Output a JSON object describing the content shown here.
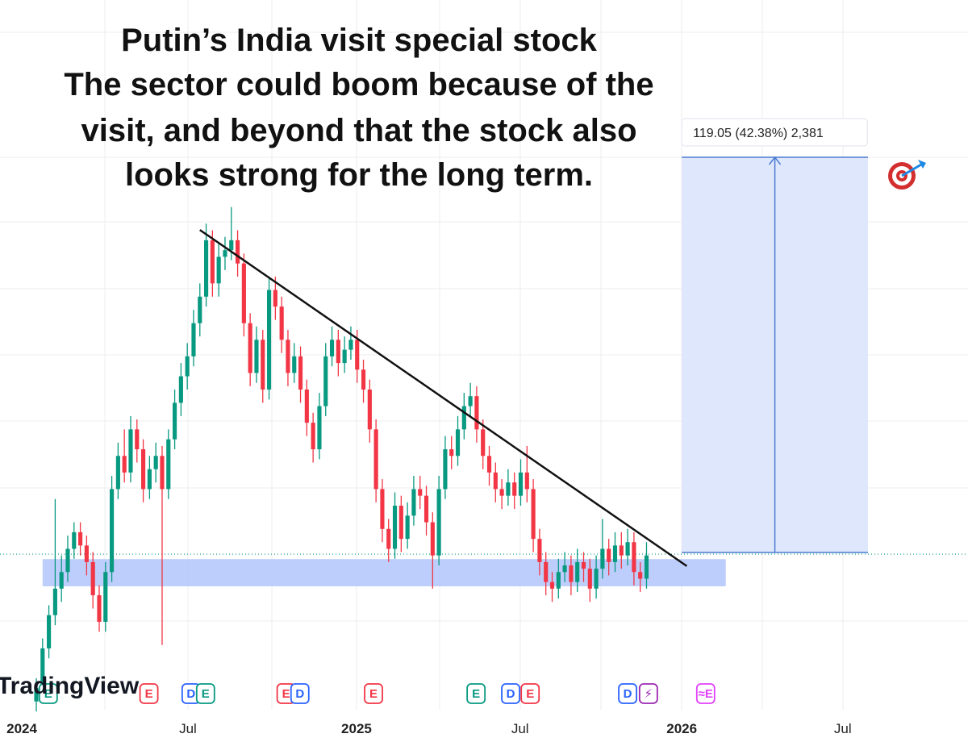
{
  "chart_data": {
    "type": "candlestick",
    "title_lines": [
      "Putin’s India visit special stock",
      "The sector could boom because of the",
      "visit, and beyond that the stock also",
      "looks strong for the long term."
    ],
    "brand": "TradingView",
    "up_color": "#089981",
    "down_color": "#f23645",
    "open": [
      236,
      240,
      252,
      262,
      270,
      275,
      282,
      287,
      283,
      278,
      268,
      260,
      275,
      300,
      310,
      305,
      318,
      312,
      300,
      306,
      310,
      300,
      315,
      326,
      334,
      340,
      350,
      358,
      375,
      362,
      370,
      372,
      375,
      368,
      350,
      335,
      345,
      330,
      360,
      355,
      345,
      335,
      340,
      330,
      320,
      312,
      325,
      340,
      345,
      338,
      342,
      345,
      336,
      330,
      318,
      300,
      288,
      282,
      295,
      285,
      292,
      300,
      298,
      290,
      280,
      300,
      312,
      310,
      318,
      325,
      328,
      318,
      310,
      305,
      300,
      298,
      302,
      298,
      305,
      300,
      285,
      278,
      272,
      270,
      275,
      277,
      272,
      278,
      276,
      270,
      276,
      282,
      278,
      283,
      280,
      284,
      275,
      273
    ],
    "high": [
      243,
      255,
      265,
      297,
      280,
      286,
      290,
      290,
      286,
      281,
      271,
      278,
      304,
      314,
      318,
      322,
      321,
      315,
      310,
      314,
      313,
      318,
      330,
      338,
      344,
      354,
      362,
      380,
      378,
      374,
      376,
      385,
      378,
      371,
      353,
      349,
      348,
      364,
      364,
      358,
      348,
      344,
      343,
      333,
      323,
      329,
      344,
      349,
      348,
      346,
      349,
      348,
      339,
      333,
      321,
      303,
      291,
      299,
      298,
      296,
      304,
      304,
      301,
      293,
      304,
      316,
      316,
      322,
      329,
      332,
      331,
      321,
      313,
      308,
      303,
      306,
      305,
      309,
      313,
      303,
      288,
      281,
      275,
      279,
      281,
      280,
      282,
      281,
      279,
      280,
      291,
      285,
      287,
      287,
      288,
      287,
      278,
      284
    ],
    "low": [
      233,
      237,
      249,
      259,
      266,
      272,
      279,
      280,
      274,
      264,
      257,
      257,
      272,
      297,
      302,
      302,
      308,
      296,
      297,
      302,
      253,
      297,
      312,
      322,
      330,
      337,
      346,
      355,
      358,
      358,
      366,
      369,
      364,
      346,
      331,
      332,
      326,
      327,
      351,
      341,
      331,
      332,
      326,
      316,
      308,
      309,
      322,
      337,
      334,
      335,
      339,
      332,
      326,
      314,
      296,
      284,
      278,
      279,
      281,
      282,
      289,
      294,
      286,
      270,
      277,
      297,
      306,
      307,
      315,
      322,
      314,
      306,
      301,
      296,
      294,
      295,
      294,
      295,
      296,
      281,
      274,
      268,
      266,
      267,
      272,
      268,
      269,
      272,
      266,
      267,
      273,
      274,
      275,
      276,
      277,
      271,
      269,
      270
    ],
    "close": [
      240,
      252,
      262,
      270,
      275,
      282,
      287,
      283,
      278,
      268,
      260,
      275,
      300,
      310,
      305,
      318,
      312,
      300,
      306,
      310,
      300,
      315,
      326,
      334,
      340,
      350,
      358,
      375,
      362,
      370,
      372,
      375,
      368,
      350,
      335,
      345,
      330,
      360,
      355,
      345,
      335,
      340,
      330,
      320,
      312,
      325,
      340,
      345,
      338,
      342,
      345,
      336,
      330,
      318,
      300,
      288,
      282,
      295,
      285,
      292,
      300,
      298,
      290,
      280,
      300,
      312,
      310,
      318,
      325,
      328,
      318,
      310,
      305,
      300,
      298,
      302,
      298,
      305,
      300,
      285,
      278,
      272,
      270,
      275,
      277,
      272,
      278,
      276,
      270,
      276,
      282,
      278,
      283,
      280,
      284,
      275,
      273,
      280
    ],
    "xlim": [
      -5.77,
      148.1
    ],
    "ylim": [
      233.5,
      447.4
    ],
    "xticks": [
      {
        "value": -2.3,
        "label": "2024"
      },
      {
        "value": 24.1,
        "label": "Jul"
      },
      {
        "value": 50.9,
        "label": "2025"
      },
      {
        "value": 76.9,
        "label": "Jul"
      },
      {
        "value": 102.6,
        "label": "2026"
      },
      {
        "value": 128.2,
        "label": "Jul"
      }
    ],
    "trendline": {
      "x": [
        26.0,
        103.4
      ],
      "y": [
        378.1,
        276.8
      ],
      "color": "#111111"
    },
    "support_zone": {
      "x": [
        1.0,
        109.6
      ],
      "y": [
        270.7,
        278.9
      ],
      "color": "#b3c5fb"
    },
    "measure": {
      "x": [
        102.6,
        132.2
      ],
      "y": [
        280.9,
        400.0
      ],
      "label": "119.05 (42.38%) 2,381",
      "color": "#4a7bd0"
    },
    "price_line": {
      "value": 280.4,
      "color": "#089981"
    },
    "events": [
      {
        "x": 1.9,
        "label": "E",
        "color": "#089981"
      },
      {
        "x": 17.9,
        "label": "E",
        "color": "#f23645"
      },
      {
        "x": 24.6,
        "label": "D",
        "color": "#2962ff"
      },
      {
        "x": 26.9,
        "label": "E",
        "color": "#089981"
      },
      {
        "x": 39.7,
        "label": "E",
        "color": "#f23645"
      },
      {
        "x": 41.9,
        "label": "D",
        "color": "#2962ff"
      },
      {
        "x": 53.6,
        "label": "E",
        "color": "#f23645"
      },
      {
        "x": 69.9,
        "label": "E",
        "color": "#089981"
      },
      {
        "x": 75.4,
        "label": "D",
        "color": "#2962ff"
      },
      {
        "x": 78.5,
        "label": "E",
        "color": "#f23645"
      },
      {
        "x": 94.0,
        "label": "D",
        "color": "#2962ff"
      },
      {
        "x": 97.3,
        "label": "⚡",
        "color": "#9c27b0"
      },
      {
        "x": 106.4,
        "label": "≈E",
        "color": "#e040fb"
      }
    ]
  }
}
